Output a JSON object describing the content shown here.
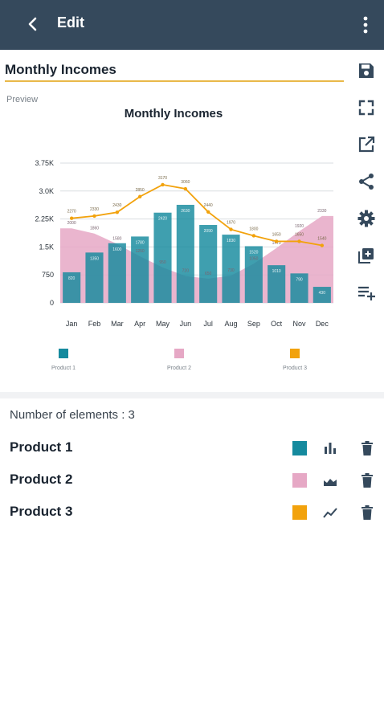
{
  "appbar": {
    "title": "Edit",
    "back_icon": "arrow-back-icon",
    "more_icon": "more-vert-icon",
    "background": "#35495c"
  },
  "chart_title_field": {
    "value": "Monthly Incomes"
  },
  "side_tools": [
    "save-icon",
    "fullscreen-icon",
    "open-external-icon",
    "share-icon",
    "settings-icon",
    "add-copy-icon",
    "add-list-icon"
  ],
  "preview_label": "Preview",
  "chart_data": {
    "type": "bar",
    "title": "Monthly Incomes",
    "categories": [
      "Jan",
      "Feb",
      "Mar",
      "Apr",
      "May",
      "Jun",
      "Jul",
      "Aug",
      "Sep",
      "Oct",
      "Nov",
      "Dec"
    ],
    "y_ticks": [
      "0",
      "750",
      "1.5K",
      "2.25K",
      "3.0K",
      "3.75K"
    ],
    "ylim": [
      0,
      3750
    ],
    "grid": true,
    "legend_position": "bottom",
    "series": [
      {
        "name": "Product 1",
        "chart_type": "bar",
        "color": "#158a9e",
        "values": [
          820,
          1350,
          1600,
          1780,
          2420,
          2630,
          2090,
          1830,
          1520,
          1010,
          790,
          430
        ]
      },
      {
        "name": "Product 2",
        "chart_type": "area",
        "color": "#e6a8c5",
        "values": [
          2000,
          1860,
          1580,
          1250,
          950,
          720,
          650,
          730,
          1050,
          1470,
          1920,
          2330
        ]
      },
      {
        "name": "Product 3",
        "chart_type": "line",
        "color": "#f2a20c",
        "values": [
          2270,
          2330,
          2430,
          2850,
          3170,
          3060,
          2440,
          1970,
          1800,
          1650,
          1650,
          1540
        ]
      }
    ]
  },
  "elements": {
    "count_label": "Number of elements : 3",
    "items": [
      {
        "name": "Product 1",
        "color": "#158a9e",
        "type_icon": "bar-chart-icon"
      },
      {
        "name": "Product 2",
        "color": "#e6a8c5",
        "type_icon": "area-chart-icon"
      },
      {
        "name": "Product 3",
        "color": "#f2a20c",
        "type_icon": "line-chart-icon"
      }
    ]
  }
}
